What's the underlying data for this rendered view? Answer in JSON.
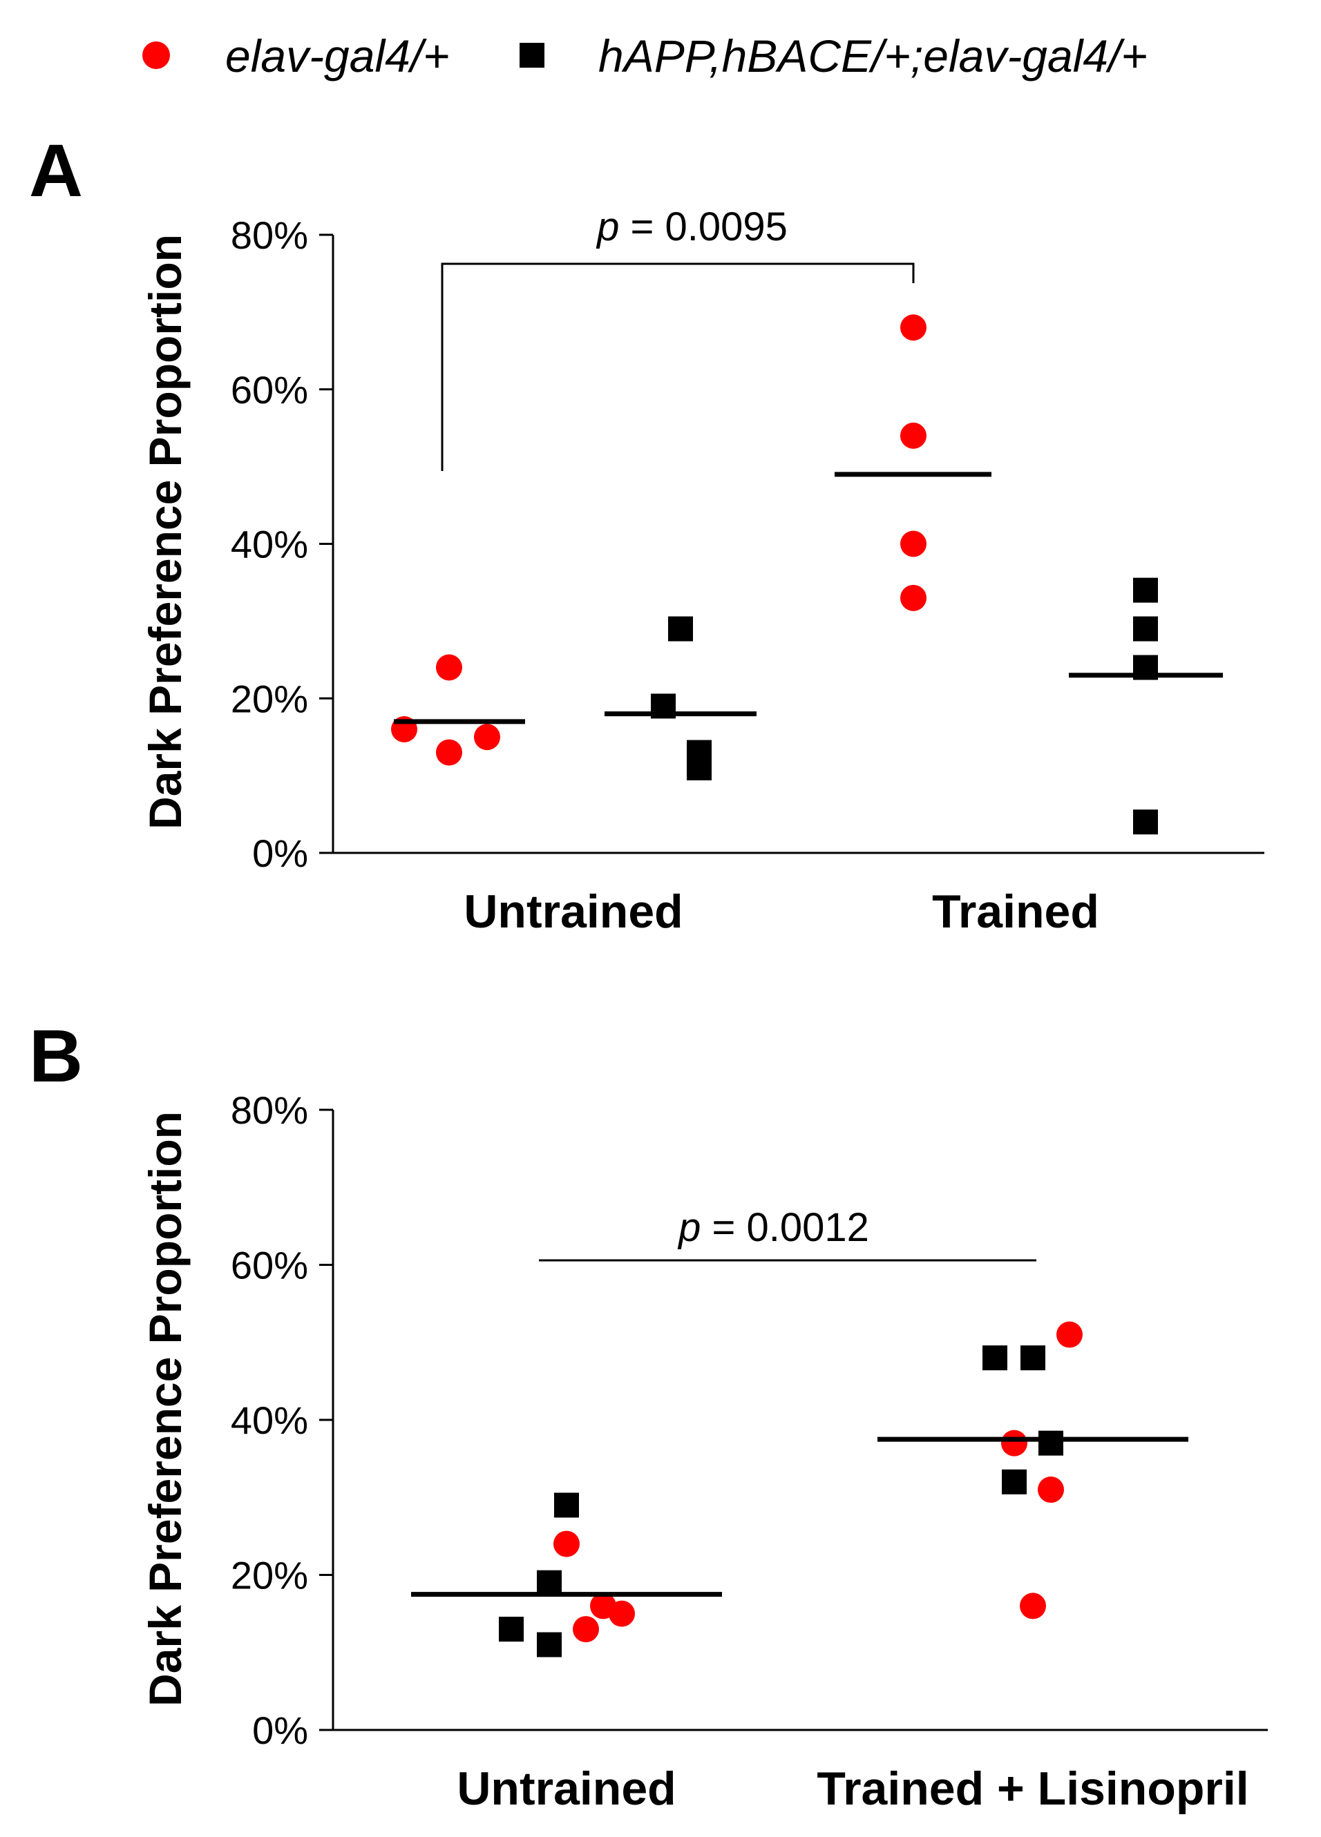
{
  "colors": {
    "series_red": "#ff0000",
    "series_black": "#000000"
  },
  "legend": [
    {
      "label": "elav-gal4/+",
      "marker": "circle",
      "color": "#ff0000"
    },
    {
      "label": "hAPP,hBACE/+;elav-gal4/+",
      "marker": "square",
      "color": "#000000"
    }
  ],
  "chart_data": [
    {
      "panel": "A",
      "type": "scatter",
      "ylabel": "Dark Preference Proportion",
      "ylim": [
        0,
        80
      ],
      "yticks": [
        "0%",
        "20%",
        "40%",
        "60%",
        "80%"
      ],
      "ytick_values": [
        0,
        20,
        40,
        60,
        80
      ],
      "categories": [
        "Untrained",
        "Trained"
      ],
      "groups": [
        {
          "category": "Untrained",
          "series": "elav-gal4/+",
          "values": [
            24,
            16,
            13,
            15
          ],
          "mean": 17
        },
        {
          "category": "Untrained",
          "series": "hAPP,hBACE/+;elav-gal4/+",
          "values": [
            29,
            19,
            11,
            13
          ],
          "mean": 18
        },
        {
          "category": "Trained",
          "series": "elav-gal4/+",
          "values": [
            68,
            54,
            40,
            33
          ],
          "mean": 49
        },
        {
          "category": "Trained",
          "series": "hAPP,hBACE/+;elav-gal4/+",
          "values": [
            34,
            29,
            24,
            4
          ],
          "mean": 23
        }
      ],
      "annotation": {
        "label": "p",
        "text": " = 0.0095"
      }
    },
    {
      "panel": "B",
      "type": "scatter",
      "ylabel": "Dark Preference Proportion",
      "ylim": [
        0,
        80
      ],
      "yticks": [
        "0%",
        "20%",
        "40%",
        "60%",
        "80%"
      ],
      "ytick_values": [
        0,
        20,
        40,
        60,
        80
      ],
      "categories": [
        "Untrained",
        "Trained + Lisinopril"
      ],
      "groups": [
        {
          "category": "Untrained",
          "series": "hAPP,hBACE/+;elav-gal4/+",
          "values": [
            29,
            19,
            13,
            11
          ]
        },
        {
          "category": "Untrained",
          "series": "elav-gal4/+",
          "values": [
            24,
            13,
            16,
            15
          ]
        },
        {
          "category": "Trained + Lisinopril",
          "series": "hAPP,hBACE/+;elav-gal4/+",
          "values": [
            48,
            48,
            37,
            32
          ]
        },
        {
          "category": "Trained + Lisinopril",
          "series": "elav-gal4/+",
          "values": [
            51,
            37,
            31,
            16
          ]
        }
      ],
      "means": [
        {
          "category": "Untrained",
          "mean": 17.5
        },
        {
          "category": "Trained + Lisinopril",
          "mean": 37.5
        }
      ],
      "annotation": {
        "label": "p",
        "text": " = 0.0012"
      }
    }
  ]
}
